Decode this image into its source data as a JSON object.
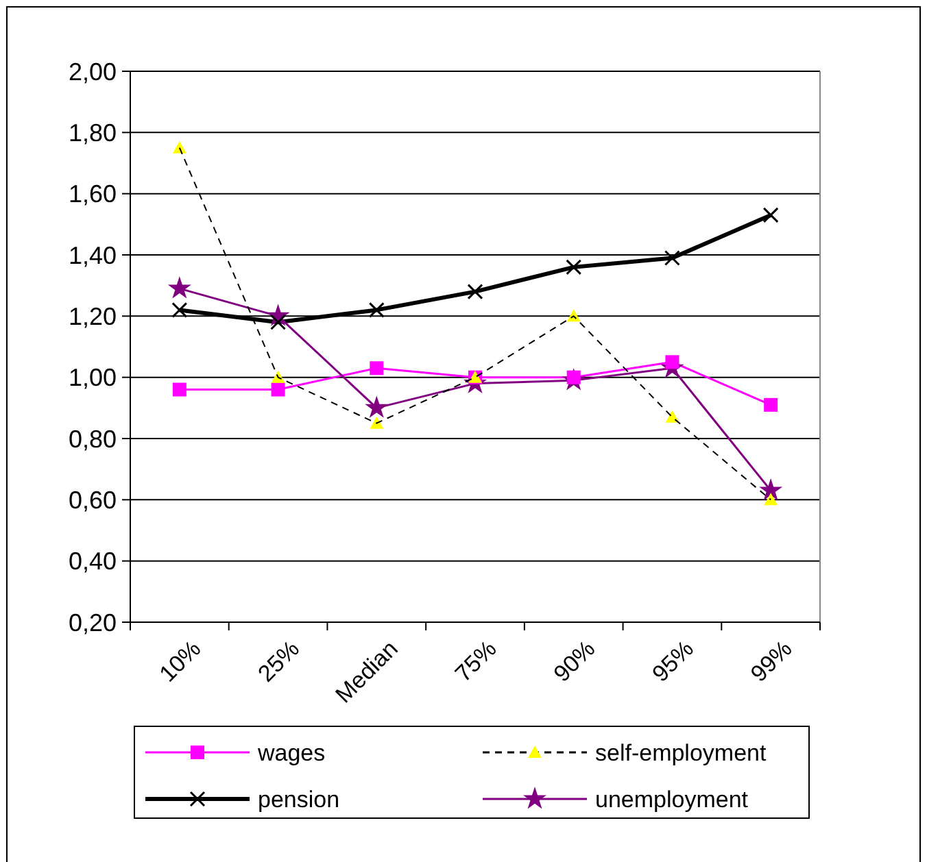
{
  "chart_data": {
    "type": "line",
    "categories": [
      "10%",
      "25%",
      "Median",
      "75%",
      "90%",
      "95%",
      "99%"
    ],
    "series": [
      {
        "name": "wages",
        "color": "#ff00ff",
        "marker": "square",
        "line_style": "solid",
        "values": [
          0.96,
          0.96,
          1.03,
          1.0,
          1.0,
          1.05,
          0.91
        ]
      },
      {
        "name": "self-employment",
        "color": "#ffff00",
        "marker": "triangle",
        "line_style": "dashed",
        "values": [
          1.75,
          1.0,
          0.85,
          1.0,
          1.2,
          0.87,
          0.6
        ]
      },
      {
        "name": "pension",
        "color": "#000000",
        "marker": "cross",
        "line_style": "solid",
        "values": [
          1.22,
          1.18,
          1.22,
          1.28,
          1.36,
          1.39,
          1.53
        ]
      },
      {
        "name": "unemployment",
        "color": "#800080",
        "marker": "star",
        "line_style": "solid",
        "values": [
          1.29,
          1.2,
          0.9,
          0.98,
          0.99,
          1.03,
          0.63
        ]
      }
    ],
    "ylim": [
      0.2,
      2.0
    ],
    "yticks": [
      {
        "value": 0.2,
        "label": "0,20"
      },
      {
        "value": 0.4,
        "label": "0,40"
      },
      {
        "value": 0.6,
        "label": "0,60"
      },
      {
        "value": 0.8,
        "label": "0,80"
      },
      {
        "value": 1.0,
        "label": "1,00"
      },
      {
        "value": 1.2,
        "label": "1,20"
      },
      {
        "value": 1.4,
        "label": "1,40"
      },
      {
        "value": 1.6,
        "label": "1,60"
      },
      {
        "value": 1.8,
        "label": "1,80"
      },
      {
        "value": 2.0,
        "label": "2,00"
      }
    ],
    "grid": "y",
    "legend": "bottom"
  }
}
